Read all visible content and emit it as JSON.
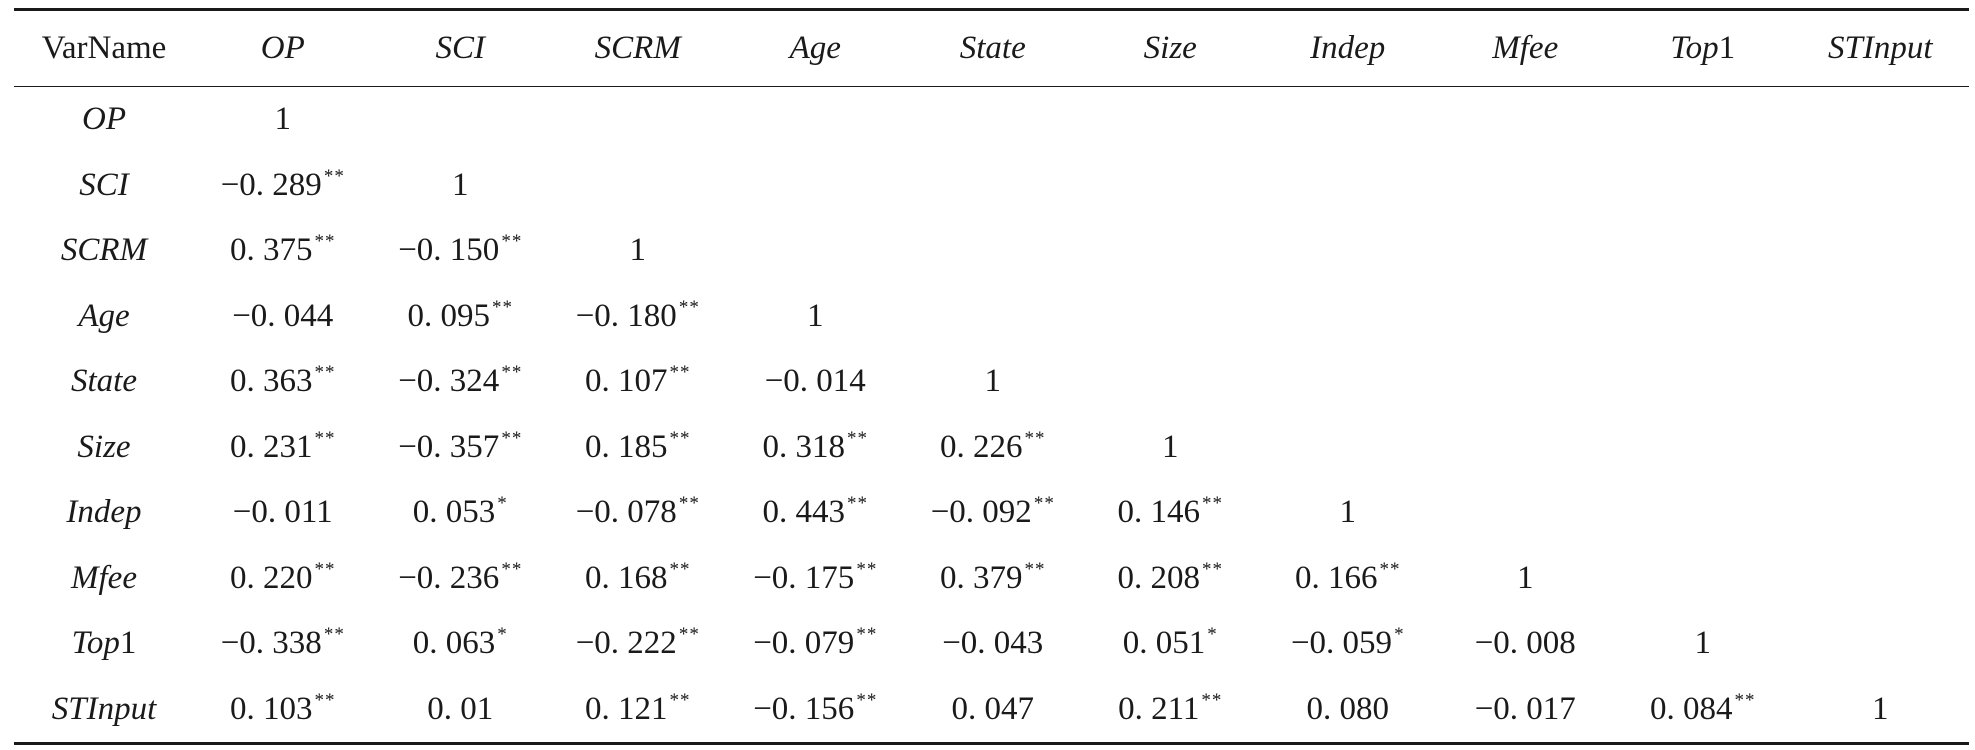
{
  "table": {
    "header_first": "VarName",
    "headers": [
      {
        "base": "OP",
        "suffix": ""
      },
      {
        "base": "SCI",
        "suffix": ""
      },
      {
        "base": "SCRM",
        "suffix": ""
      },
      {
        "base": "Age",
        "suffix": ""
      },
      {
        "base": "State",
        "suffix": ""
      },
      {
        "base": "Size",
        "suffix": ""
      },
      {
        "base": "Indep",
        "suffix": ""
      },
      {
        "base": "Mfee",
        "suffix": ""
      },
      {
        "base": "Top",
        "suffix": "1"
      },
      {
        "base": "STInput",
        "suffix": ""
      }
    ],
    "rows": [
      {
        "label": {
          "base": "OP",
          "suffix": ""
        },
        "cells": [
          {
            "v": "1",
            "s": ""
          }
        ]
      },
      {
        "label": {
          "base": "SCI",
          "suffix": ""
        },
        "cells": [
          {
            "v": "−0. 289",
            "s": "**"
          },
          {
            "v": "1",
            "s": ""
          }
        ]
      },
      {
        "label": {
          "base": "SCRM",
          "suffix": ""
        },
        "cells": [
          {
            "v": "0. 375",
            "s": "**"
          },
          {
            "v": "−0. 150",
            "s": "**"
          },
          {
            "v": "1",
            "s": ""
          }
        ]
      },
      {
        "label": {
          "base": "Age",
          "suffix": ""
        },
        "cells": [
          {
            "v": "−0. 044",
            "s": ""
          },
          {
            "v": "0. 095",
            "s": "**"
          },
          {
            "v": "−0. 180",
            "s": "**"
          },
          {
            "v": "1",
            "s": ""
          }
        ]
      },
      {
        "label": {
          "base": "State",
          "suffix": ""
        },
        "cells": [
          {
            "v": "0. 363",
            "s": "**"
          },
          {
            "v": "−0. 324",
            "s": "**"
          },
          {
            "v": "0. 107",
            "s": "**"
          },
          {
            "v": "−0. 014",
            "s": ""
          },
          {
            "v": "1",
            "s": ""
          }
        ]
      },
      {
        "label": {
          "base": "Size",
          "suffix": ""
        },
        "cells": [
          {
            "v": "0. 231",
            "s": "**"
          },
          {
            "v": "−0. 357",
            "s": "**"
          },
          {
            "v": "0. 185",
            "s": "**"
          },
          {
            "v": "0. 318",
            "s": "**"
          },
          {
            "v": "0. 226",
            "s": "**"
          },
          {
            "v": "1",
            "s": ""
          }
        ]
      },
      {
        "label": {
          "base": "Indep",
          "suffix": ""
        },
        "cells": [
          {
            "v": "−0. 011",
            "s": ""
          },
          {
            "v": "0. 053",
            "s": "*"
          },
          {
            "v": "−0. 078",
            "s": "**"
          },
          {
            "v": "0. 443",
            "s": "**"
          },
          {
            "v": "−0. 092",
            "s": "**"
          },
          {
            "v": "0. 146",
            "s": "**"
          },
          {
            "v": "1",
            "s": ""
          }
        ]
      },
      {
        "label": {
          "base": "Mfee",
          "suffix": ""
        },
        "cells": [
          {
            "v": "0. 220",
            "s": "**"
          },
          {
            "v": "−0. 236",
            "s": "**"
          },
          {
            "v": "0. 168",
            "s": "**"
          },
          {
            "v": "−0. 175",
            "s": "**"
          },
          {
            "v": "0. 379",
            "s": "**"
          },
          {
            "v": "0. 208",
            "s": "**"
          },
          {
            "v": "0. 166",
            "s": "**"
          },
          {
            "v": "1",
            "s": ""
          }
        ]
      },
      {
        "label": {
          "base": "Top",
          "suffix": "1"
        },
        "cells": [
          {
            "v": "−0. 338",
            "s": "**"
          },
          {
            "v": "0. 063",
            "s": "*"
          },
          {
            "v": "−0. 222",
            "s": "**"
          },
          {
            "v": "−0. 079",
            "s": "**"
          },
          {
            "v": "−0. 043",
            "s": ""
          },
          {
            "v": "0. 051",
            "s": "*"
          },
          {
            "v": "−0. 059",
            "s": "*"
          },
          {
            "v": "−0. 008",
            "s": ""
          },
          {
            "v": "1",
            "s": ""
          }
        ]
      },
      {
        "label": {
          "base": "STInput",
          "suffix": ""
        },
        "cells": [
          {
            "v": "0. 103",
            "s": "**"
          },
          {
            "v": "0. 01",
            "s": ""
          },
          {
            "v": "0. 121",
            "s": "**"
          },
          {
            "v": "−0. 156",
            "s": "**"
          },
          {
            "v": "0. 047",
            "s": ""
          },
          {
            "v": "0. 211",
            "s": "**"
          },
          {
            "v": "0. 080",
            "s": ""
          },
          {
            "v": "−0. 017",
            "s": ""
          },
          {
            "v": "0. 084",
            "s": "**"
          },
          {
            "v": "1",
            "s": ""
          }
        ]
      }
    ]
  }
}
